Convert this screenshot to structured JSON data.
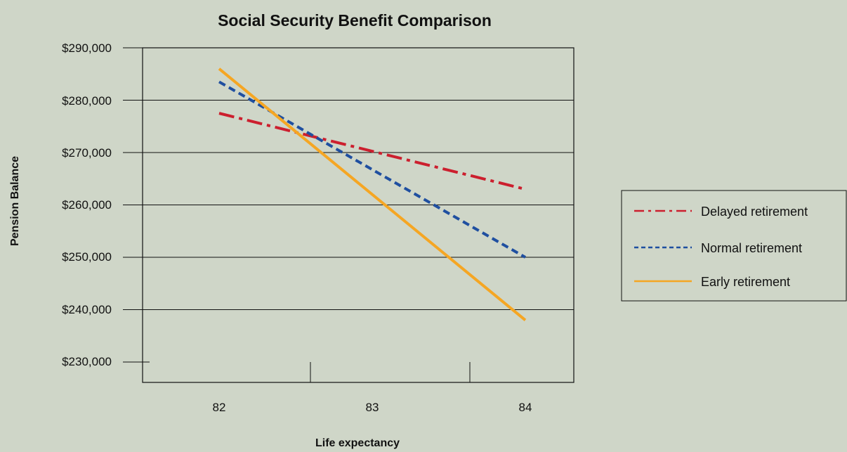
{
  "chart_data": {
    "type": "line",
    "title": "Social Security Benefit Comparison",
    "xlabel": "Life expectancy",
    "ylabel": "Pension Balance",
    "x_tick_labels": [
      "82",
      "83",
      "84"
    ],
    "y_tick_labels": [
      "$290,000",
      "$280,000",
      "$270,000",
      "$260,000",
      "$250,000",
      "$240,000",
      "$230,000"
    ],
    "ylim": [
      230000,
      290000
    ],
    "grid": true,
    "legend_position": "right",
    "series": [
      {
        "name": "Delayed retirement",
        "x": [
          82,
          84
        ],
        "values": [
          277500,
          263000
        ],
        "color": "#cc1f2e",
        "style": "dash-dot"
      },
      {
        "name": "Normal retirement",
        "x": [
          82,
          84
        ],
        "values": [
          283500,
          250000
        ],
        "color": "#1f4fa0",
        "style": "dashed"
      },
      {
        "name": "Early retirement",
        "x": [
          82,
          84
        ],
        "values": [
          286000,
          238000
        ],
        "color": "#f5a623",
        "style": "solid"
      }
    ]
  }
}
